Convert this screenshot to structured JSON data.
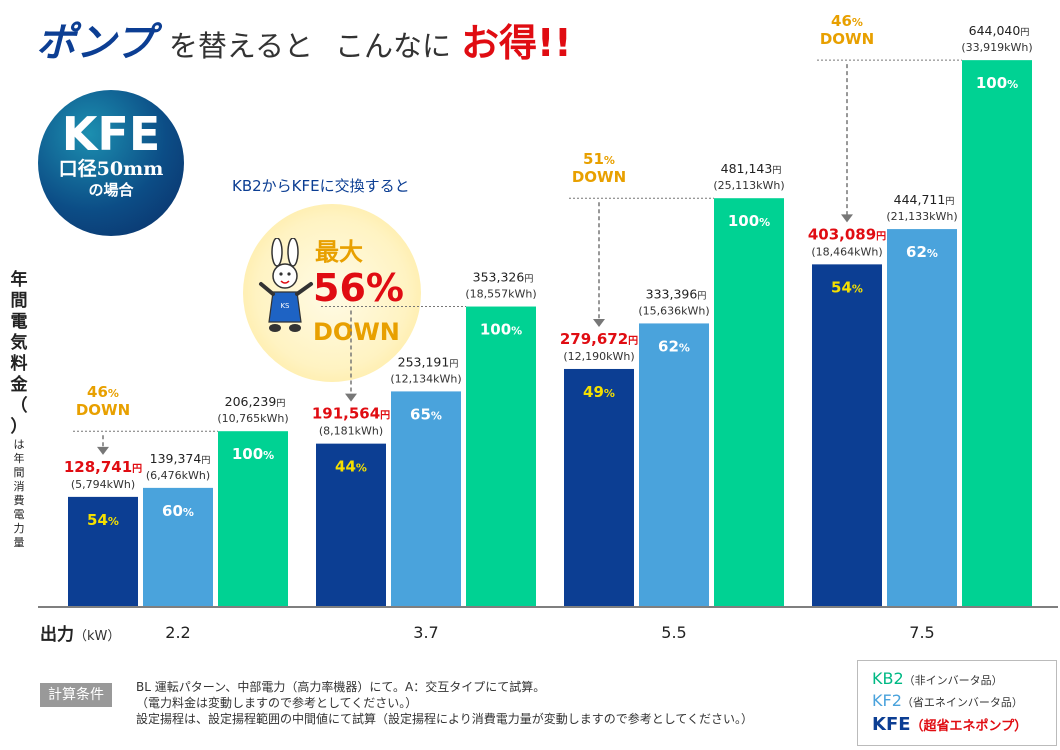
{
  "title": {
    "part1": "ポンプ",
    "part2": "を替えると",
    "part3": "こんなに",
    "part4": "お得!!"
  },
  "badge": {
    "kfe": "KFE",
    "line1": "口径50mm",
    "line2": "の場合"
  },
  "callout": {
    "lead": "KB2からKFEに交換すると",
    "max": "最大",
    "percent": "56%",
    "down": "DOWN"
  },
  "y_axis_label": {
    "main": "年間電気料金（）",
    "sub": "は年間消費電力量"
  },
  "x_axis": {
    "label": "出力",
    "unit": "（kW）"
  },
  "conditions": {
    "label": "計算条件",
    "lines": [
      "BL 運転パターン、中部電力（高力率機器）にて。A：交互タイプにて試算。",
      "（電力料金は変動しますので参考としてください。）",
      "設定揚程は、設定揚程範囲の中間値にて試算（設定揚程により消費電力量が変動しますので参考としてください。）"
    ]
  },
  "legend": [
    {
      "name": "KB2",
      "desc": "（非インバータ品）",
      "color": "#00d293"
    },
    {
      "name": "KF2",
      "desc": "（省エネインバータ品）",
      "color": "#4aa3dc"
    },
    {
      "name": "KFE",
      "desc": "（超省エネポンプ）",
      "color": "#0c3e93",
      "desc_color": "#e00c12"
    }
  ],
  "colors": {
    "kb2": "#00d293",
    "kf2": "#4aa3dc",
    "kfe": "#0c3e93",
    "accent_red": "#e00c12",
    "accent_orange": "#e8a000",
    "pct_yellow": "#f5e000"
  },
  "chart_data": {
    "type": "bar",
    "categories": [
      "2.2",
      "3.7",
      "5.5",
      "7.5"
    ],
    "series": [
      {
        "name": "KFE",
        "values": [
          128741,
          191564,
          279672,
          403089
        ],
        "kwh": [
          "(5,794kWh)",
          "(8,181kWh)",
          "(12,190kWh)",
          "(18,464kWh)"
        ],
        "pct": [
          "54%",
          "44%",
          "49%",
          "54%"
        ],
        "labels": [
          "128,741円",
          "191,564円",
          "279,672円",
          "403,089円"
        ]
      },
      {
        "name": "KF2",
        "values": [
          139374,
          253191,
          333396,
          444711
        ],
        "kwh": [
          "(6,476kWh)",
          "(12,134kWh)",
          "(15,636kWh)",
          "(21,133kWh)"
        ],
        "pct": [
          "60%",
          "65%",
          "62%",
          "62%"
        ],
        "labels": [
          "139,374円",
          "253,191円",
          "333,396円",
          "444,711円"
        ]
      },
      {
        "name": "KB2",
        "values": [
          206239,
          353326,
          481143,
          644040
        ],
        "kwh": [
          "(10,765kWh)",
          "(18,557kWh)",
          "(25,113kWh)",
          "(33,919kWh)"
        ],
        "pct": [
          "100%",
          "100%",
          "100%",
          "100%"
        ],
        "labels": [
          "206,239円",
          "353,326円",
          "481,143円",
          "644,040円"
        ]
      }
    ],
    "down_labels": [
      {
        "category": "2.2",
        "pct": "46%",
        "text": "DOWN"
      },
      {
        "category": "3.7",
        "pct": "",
        "text": ""
      },
      {
        "category": "5.5",
        "pct": "51%",
        "text": "DOWN"
      },
      {
        "category": "7.5",
        "pct": "46%",
        "text": "DOWN"
      }
    ],
    "xlabel": "出力（kW）",
    "ylabel": "年間電気料金",
    "ylim": [
      0,
      715000
    ]
  }
}
